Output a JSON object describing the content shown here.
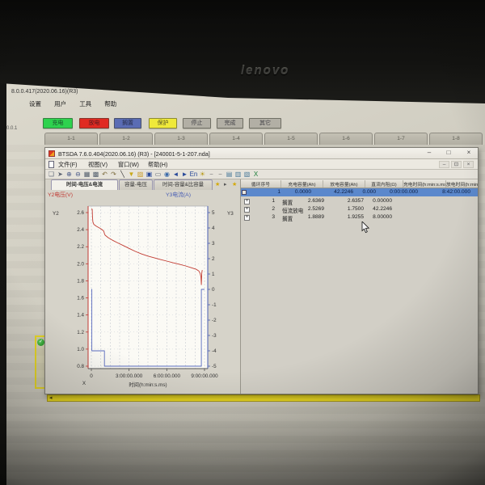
{
  "monitor": {
    "brand_logo": "lenovo"
  },
  "background_app": {
    "title": "8.0.0.417(2020.06.16)(R3)",
    "menu_items": [
      "设置",
      "用户",
      "工具",
      "帮助"
    ],
    "corner_label": "0.0.1",
    "status_legend": [
      {
        "label": "充电",
        "color": "#2ed24e"
      },
      {
        "label": "放电",
        "color": "#e02a22"
      },
      {
        "label": "搁置",
        "color": "#5a6cb4"
      },
      {
        "label": "保护",
        "color": "#efe93a"
      },
      {
        "label": "停止",
        "color": "#b2afa5"
      },
      {
        "label": "完成",
        "color": "#b2afa5"
      },
      {
        "label": "其它",
        "color": "#b2afa5"
      }
    ],
    "channel_tabs": [
      "1-1",
      "1-2",
      "1-3",
      "1-4",
      "1-5",
      "1-6",
      "1-7",
      "1-8"
    ]
  },
  "window": {
    "title": "BTSDA 7.6.0.404(2020.06.16) (R3) - [240001-5-1-207.nda]",
    "controls": {
      "minimize": "–",
      "maximize": "□",
      "close": "×"
    },
    "mdi_controls": {
      "minimize": "–",
      "restore": "⊡",
      "close": "×"
    },
    "menu_items": [
      "文件(F)",
      "视图(V)",
      "窗口(W)",
      "帮助(H)"
    ],
    "toolbar_icons": [
      {
        "name": "new-icon",
        "glyph": "❏",
        "color": "#6a7180"
      },
      {
        "name": "cursor-icon",
        "glyph": "➤",
        "color": "#5a6170"
      },
      {
        "name": "zoom-in-icon",
        "glyph": "⊕",
        "color": "#4a5a88"
      },
      {
        "name": "zoom-out-icon",
        "glyph": "⊖",
        "color": "#4a5a88"
      },
      {
        "name": "grid-view-icon",
        "glyph": "▦",
        "color": "#55606e"
      },
      {
        "name": "layer-view-icon",
        "glyph": "▩",
        "color": "#55606e"
      },
      {
        "name": "undo-icon",
        "glyph": "↶",
        "color": "#7a6a3a"
      },
      {
        "name": "redo-icon",
        "glyph": "↷",
        "color": "#7a6a3a"
      },
      {
        "name": "draw-line-icon",
        "glyph": "╲",
        "color": "#333333"
      },
      {
        "name": "filter-icon",
        "glyph": "▼",
        "color": "#c8a818"
      },
      {
        "name": "open-file-icon",
        "glyph": "▨",
        "color": "#c89a28"
      },
      {
        "name": "save-icon",
        "glyph": "▣",
        "color": "#2a4a9a"
      },
      {
        "name": "print-icon",
        "glyph": "▭",
        "color": "#55606e"
      },
      {
        "name": "about-icon",
        "glyph": "◉",
        "color": "#3a6aaa"
      },
      {
        "name": "back-icon",
        "glyph": "◄",
        "color": "#2a4a9a"
      },
      {
        "name": "forward-icon",
        "glyph": "►",
        "color": "#2a4a9a"
      },
      {
        "name": "language-icon",
        "glyph": "En",
        "color": "#2a4a9a"
      },
      {
        "name": "hint-icon",
        "glyph": "☀",
        "color": "#b89a18"
      },
      {
        "name": "hline-icon",
        "glyph": "−",
        "color": "#777777"
      },
      {
        "name": "hline2-icon",
        "glyph": "−",
        "color": "#777777"
      },
      {
        "name": "report-icon",
        "glyph": "▤",
        "color": "#4a7a9a"
      },
      {
        "name": "table-icon",
        "glyph": "▥",
        "color": "#4a7a9a"
      },
      {
        "name": "layout-icon",
        "glyph": "▧",
        "color": "#4a7a9a"
      },
      {
        "name": "excel-export-icon",
        "glyph": "X",
        "color": "#1c7c38"
      }
    ],
    "tabs": [
      {
        "label": "时间-电压&电流"
      },
      {
        "label": "容量-电压"
      },
      {
        "label": "时间-容量&比容量"
      }
    ],
    "tab_star": "★",
    "tab_arrow": "▸"
  },
  "table": {
    "headers": [
      "循环序号",
      "充电容量(Ah)",
      "放电容量(Ah)",
      "直流内阻(Ω)",
      "充电时间(h:min:s.ms)",
      "放电时间(h:min:s.ms)"
    ],
    "summary_row": [
      "1",
      "0.0000",
      "42.2246",
      "0.000",
      "0:00:00.000",
      "8:42:00.000"
    ],
    "step_rows": [
      {
        "no": "1",
        "name": "搁置",
        "v1": "2.6369",
        "v2": "2.6357",
        "v3": "0.00000"
      },
      {
        "no": "2",
        "name": "恒流放电",
        "v1": "2.5269",
        "v2": "1.7500",
        "v3": "42.2246"
      },
      {
        "no": "3",
        "name": "搁置",
        "v1": "1.8889",
        "v2": "1.9255",
        "v3": "8.00000"
      }
    ]
  },
  "chart_data": {
    "type": "line",
    "x_axis": {
      "title": "时间(h:min:s.ms)",
      "prefix": "X",
      "ticks_hours": [
        0,
        3,
        6,
        9
      ],
      "tick_labels": [
        "0",
        "3:00:00.000",
        "6:00:00.000",
        "9:00:00.000"
      ],
      "range_hours": [
        0,
        9.3
      ],
      "grid_step_hours": 0.75
    },
    "y_left": {
      "name": "Y2",
      "series_label": "Y2电压(V)",
      "unit": "V",
      "ticks": [
        2.6,
        2.4,
        2.2,
        2.0,
        1.8,
        1.6,
        1.4,
        1.2,
        1.0,
        0.8
      ],
      "top": 2.6,
      "bottom": 0.8,
      "color": "#c03a34"
    },
    "y_right": {
      "name": "Y3",
      "series_label": "Y3电流(A)",
      "unit": "A",
      "ticks": [
        5,
        4,
        3,
        2,
        1,
        0,
        -1,
        -2,
        -3,
        -4,
        -5
      ],
      "top": 5,
      "bottom": -5,
      "color": "#4a5fb4"
    },
    "series": [
      {
        "name": "电压",
        "axis": "left",
        "color": "#c23b32",
        "points": [
          [
            0,
            2.645
          ],
          [
            0.07,
            2.638
          ],
          [
            0.09,
            2.55
          ],
          [
            0.12,
            2.49
          ],
          [
            0.2,
            2.462
          ],
          [
            0.4,
            2.44
          ],
          [
            0.7,
            2.415
          ],
          [
            0.95,
            2.39
          ],
          [
            1.0,
            2.375
          ],
          [
            1.05,
            2.35
          ],
          [
            1.1,
            2.335
          ],
          [
            1.35,
            2.305
          ],
          [
            1.7,
            2.275
          ],
          [
            2.1,
            2.245
          ],
          [
            2.6,
            2.21
          ],
          [
            3.0,
            2.18
          ],
          [
            3.5,
            2.145
          ],
          [
            4.0,
            2.115
          ],
          [
            4.5,
            2.09
          ],
          [
            5.0,
            2.07
          ],
          [
            5.5,
            2.05
          ],
          [
            6.0,
            2.032
          ],
          [
            6.5,
            2.012
          ],
          [
            7.0,
            1.995
          ],
          [
            7.5,
            1.975
          ],
          [
            8.0,
            1.952
          ],
          [
            8.35,
            1.935
          ],
          [
            8.55,
            1.915
          ],
          [
            8.65,
            1.888
          ],
          [
            8.72,
            1.845
          ],
          [
            8.75,
            1.755
          ],
          [
            8.78,
            1.889
          ],
          [
            8.82,
            1.926
          ]
        ]
      },
      {
        "name": "电流",
        "axis": "right",
        "color": "#5a6cc0",
        "points": [
          [
            0,
            0
          ],
          [
            0.04,
            0
          ],
          [
            0.04,
            -4
          ],
          [
            1.04,
            -4
          ],
          [
            1.04,
            -5
          ],
          [
            8.75,
            -5
          ],
          [
            8.75,
            0
          ],
          [
            9.0,
            0
          ]
        ]
      }
    ]
  }
}
